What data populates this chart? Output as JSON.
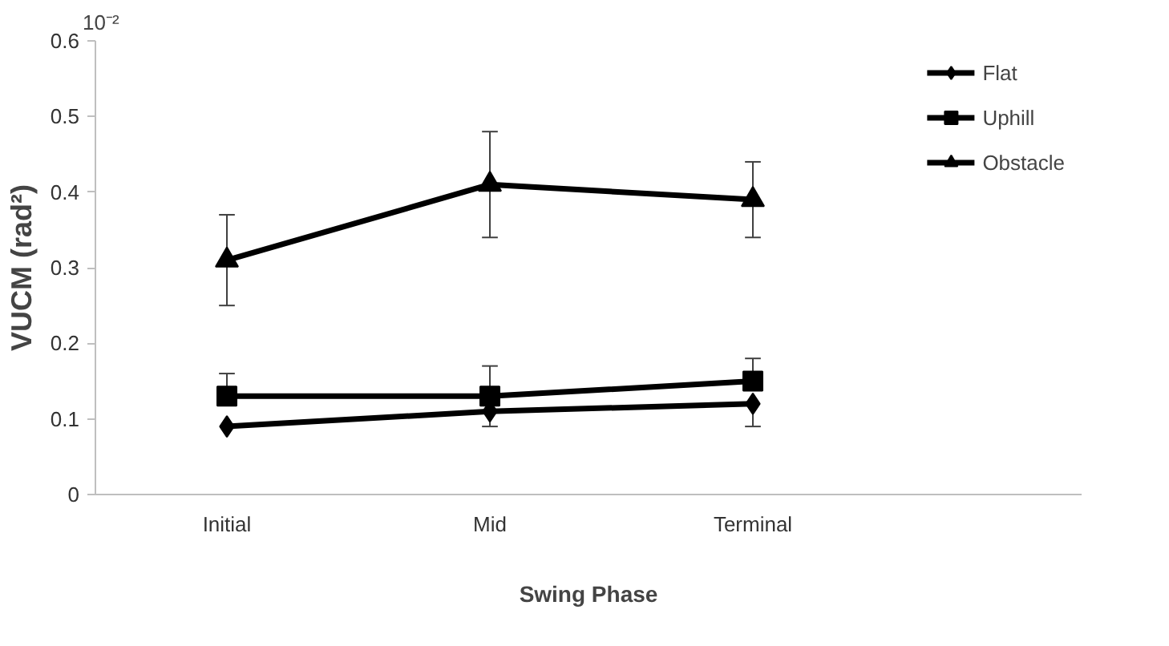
{
  "chart_data": {
    "type": "line",
    "xlabel": "Swing Phase",
    "ylabel": "VUCM (rad²)",
    "categories": [
      "Initial",
      "Mid",
      "Terminal"
    ],
    "series": [
      {
        "name": "Flat",
        "color": "#000000",
        "marker": "diamond",
        "values": [
          0.09,
          0.11,
          0.12
        ],
        "errors": [
          null,
          [
            0.09,
            0.11
          ],
          [
            0.09,
            0.12
          ]
        ]
      },
      {
        "name": "Uphill",
        "color": "#000000",
        "marker": "square",
        "values": [
          0.13,
          0.13,
          0.15
        ],
        "errors": [
          [
            0.13,
            0.16
          ],
          [
            0.13,
            0.17
          ],
          [
            0.15,
            0.18
          ]
        ]
      },
      {
        "name": "Obstacle",
        "color": "#000000",
        "marker": "triangle",
        "values": [
          0.31,
          0.41,
          0.39
        ],
        "errors": [
          0.06,
          0.07,
          0.05
        ]
      }
    ],
    "ylim": [
      0,
      0.6
    ],
    "yticks": [
      0,
      {
        "value": 0.1,
        "label": "0.1"
      },
      {
        "value": 0.2,
        "label": "0.2"
      },
      {
        "value": 0.3,
        "label": "0.3"
      },
      {
        "value": 0.4,
        "label": "0.4"
      },
      {
        "value": 0.5,
        "label": "0.5"
      },
      {
        "value": 0.6,
        "label": "0.6"
      }
    ],
    "annotations": [
      "10⁻²"
    ],
    "legend": "top right",
    "grid": false,
    "line_style": "solid"
  }
}
